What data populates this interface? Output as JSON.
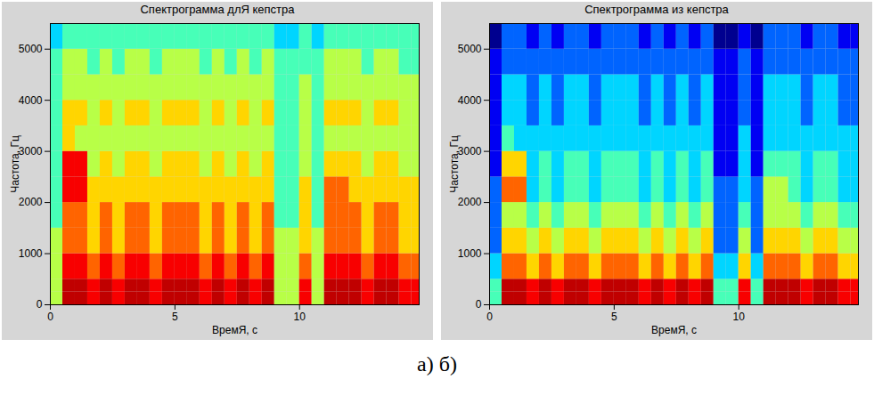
{
  "chart_data": [
    {
      "type": "heatmap",
      "title": "Спектрограмма длЯ кепстра",
      "x_label": "ВремЯ, с",
      "y_label": "Частота, Гц",
      "xlim": [
        0,
        14.8
      ],
      "xticks": [
        0,
        5,
        10
      ],
      "ylim": [
        0,
        5500
      ],
      "yticks": [
        0,
        1000,
        2000,
        3000,
        4000,
        5000
      ],
      "clim": [
        0,
        9
      ],
      "x": [
        0,
        0.5,
        1,
        1.5,
        2,
        2.5,
        3,
        3.5,
        4,
        4.5,
        5,
        5.5,
        6,
        6.5,
        7,
        7.5,
        8,
        8.5,
        9,
        9.5,
        10,
        10.5,
        11,
        11.5,
        12,
        12.5,
        13,
        13.5,
        14,
        14.5
      ],
      "y": [
        0,
        250,
        500,
        1000,
        1500,
        2000,
        2500,
        3000,
        3500,
        4000,
        4500,
        5000
      ],
      "cells": [
        [
          5,
          9,
          9,
          8,
          9,
          8,
          9,
          9,
          8,
          9,
          9,
          9,
          8,
          9,
          8,
          9,
          8,
          9,
          5,
          5,
          8,
          5,
          9,
          9,
          9,
          8,
          9,
          9,
          8,
          8
        ],
        [
          5,
          9,
          9,
          8,
          9,
          8,
          9,
          9,
          8,
          9,
          9,
          9,
          8,
          9,
          8,
          9,
          8,
          9,
          5,
          5,
          8,
          5,
          9,
          9,
          9,
          8,
          9,
          9,
          8,
          8
        ],
        [
          5,
          8,
          8,
          7,
          8,
          7,
          8,
          8,
          7,
          8,
          8,
          8,
          7,
          8,
          7,
          8,
          7,
          8,
          5,
          5,
          7,
          5,
          8,
          8,
          8,
          7,
          8,
          8,
          7,
          7
        ],
        [
          5,
          7,
          7,
          6,
          7,
          6,
          7,
          7,
          6,
          7,
          7,
          7,
          6,
          7,
          6,
          7,
          6,
          7,
          5,
          5,
          6,
          5,
          7,
          7,
          7,
          6,
          7,
          7,
          6,
          6
        ],
        [
          4,
          7,
          7,
          6,
          7,
          6,
          7,
          7,
          6,
          7,
          7,
          7,
          6,
          7,
          6,
          7,
          6,
          7,
          4,
          4,
          6,
          4,
          7,
          7,
          7,
          6,
          7,
          7,
          6,
          6
        ],
        [
          4,
          8,
          8,
          6,
          6,
          6,
          6,
          6,
          6,
          6,
          6,
          6,
          6,
          6,
          6,
          6,
          6,
          6,
          4,
          4,
          6,
          4,
          7,
          7,
          6,
          6,
          6,
          6,
          6,
          6
        ],
        [
          4,
          8,
          8,
          5,
          6,
          5,
          6,
          6,
          5,
          6,
          6,
          6,
          5,
          6,
          5,
          6,
          5,
          6,
          4,
          4,
          5,
          4,
          6,
          6,
          6,
          5,
          6,
          6,
          5,
          5
        ],
        [
          4,
          6,
          5,
          5,
          5,
          5,
          5,
          5,
          5,
          5,
          5,
          5,
          5,
          5,
          5,
          5,
          5,
          5,
          4,
          4,
          5,
          4,
          5,
          5,
          5,
          5,
          5,
          5,
          5,
          5
        ],
        [
          4,
          6,
          6,
          5,
          6,
          5,
          6,
          6,
          5,
          6,
          6,
          6,
          5,
          6,
          5,
          6,
          5,
          6,
          4,
          4,
          5,
          4,
          6,
          6,
          6,
          5,
          6,
          6,
          5,
          5
        ],
        [
          4,
          5,
          5,
          5,
          5,
          5,
          5,
          5,
          5,
          5,
          5,
          5,
          5,
          5,
          5,
          5,
          5,
          5,
          4,
          4,
          5,
          4,
          5,
          5,
          5,
          5,
          5,
          5,
          5,
          5
        ],
        [
          4,
          5,
          5,
          4,
          5,
          4,
          5,
          5,
          4,
          5,
          5,
          5,
          4,
          5,
          4,
          5,
          4,
          5,
          4,
          4,
          4,
          4,
          5,
          5,
          5,
          4,
          5,
          5,
          4,
          4
        ],
        [
          3,
          4,
          4,
          4,
          4,
          4,
          4,
          4,
          4,
          4,
          4,
          4,
          4,
          4,
          4,
          4,
          4,
          4,
          3,
          3,
          4,
          3,
          4,
          4,
          4,
          4,
          4,
          4,
          4,
          4
        ]
      ]
    },
    {
      "type": "heatmap",
      "title": "Спектрограмма из кепстра",
      "x_label": "ВремЯ, с",
      "y_label": "Частота, Гц",
      "xlim": [
        0,
        14.8
      ],
      "xticks": [
        0,
        5,
        10
      ],
      "ylim": [
        0,
        5500
      ],
      "yticks": [
        0,
        1000,
        2000,
        3000,
        4000,
        5000
      ],
      "clim": [
        0,
        9
      ],
      "x": [
        0,
        0.5,
        1,
        1.5,
        2,
        2.5,
        3,
        3.5,
        4,
        4.5,
        5,
        5.5,
        6,
        6.5,
        7,
        7.5,
        8,
        8.5,
        9,
        9.5,
        10,
        10.5,
        11,
        11.5,
        12,
        12.5,
        13,
        13.5,
        14,
        14.5
      ],
      "y": [
        0,
        250,
        500,
        1000,
        1500,
        2000,
        2500,
        3000,
        3500,
        4000,
        4500,
        5000
      ],
      "cells": [
        [
          4,
          9,
          9,
          8,
          9,
          8,
          9,
          9,
          8,
          9,
          9,
          9,
          8,
          9,
          8,
          9,
          8,
          9,
          4,
          4,
          8,
          4,
          9,
          9,
          9,
          8,
          9,
          9,
          8,
          8
        ],
        [
          4,
          9,
          9,
          8,
          9,
          8,
          9,
          9,
          8,
          9,
          9,
          9,
          8,
          9,
          8,
          9,
          8,
          9,
          4,
          4,
          8,
          4,
          9,
          9,
          9,
          8,
          9,
          9,
          8,
          8
        ],
        [
          3,
          7,
          7,
          6,
          7,
          6,
          7,
          7,
          6,
          7,
          7,
          7,
          6,
          7,
          6,
          7,
          6,
          7,
          3,
          3,
          6,
          3,
          7,
          7,
          7,
          6,
          7,
          7,
          6,
          6
        ],
        [
          2,
          6,
          6,
          5,
          6,
          5,
          6,
          6,
          5,
          6,
          6,
          6,
          5,
          6,
          5,
          6,
          5,
          6,
          2,
          2,
          5,
          2,
          6,
          6,
          6,
          5,
          6,
          6,
          5,
          5
        ],
        [
          2,
          5,
          5,
          4,
          5,
          4,
          5,
          5,
          4,
          5,
          5,
          5,
          4,
          5,
          4,
          5,
          4,
          5,
          2,
          2,
          4,
          2,
          5,
          5,
          5,
          4,
          5,
          5,
          4,
          4
        ],
        [
          2,
          7,
          7,
          3,
          4,
          3,
          4,
          4,
          3,
          4,
          4,
          4,
          3,
          4,
          3,
          4,
          3,
          4,
          2,
          2,
          3,
          2,
          5,
          5,
          4,
          3,
          4,
          4,
          3,
          3
        ],
        [
          1,
          6,
          6,
          3,
          4,
          3,
          4,
          4,
          3,
          4,
          4,
          4,
          3,
          4,
          3,
          4,
          3,
          4,
          1,
          1,
          3,
          1,
          4,
          4,
          4,
          3,
          4,
          4,
          3,
          3
        ],
        [
          1,
          4,
          3,
          3,
          3,
          3,
          3,
          3,
          3,
          3,
          3,
          3,
          3,
          3,
          3,
          3,
          3,
          3,
          1,
          1,
          3,
          1,
          3,
          3,
          3,
          3,
          3,
          3,
          3,
          3
        ],
        [
          1,
          3,
          3,
          2,
          3,
          2,
          3,
          3,
          2,
          3,
          3,
          3,
          2,
          3,
          2,
          3,
          2,
          3,
          1,
          1,
          2,
          1,
          3,
          3,
          3,
          2,
          3,
          3,
          2,
          2
        ],
        [
          1,
          3,
          3,
          2,
          3,
          2,
          3,
          3,
          2,
          3,
          3,
          3,
          2,
          3,
          2,
          3,
          2,
          3,
          1,
          1,
          2,
          1,
          3,
          3,
          3,
          2,
          3,
          3,
          2,
          2
        ],
        [
          1,
          2,
          2,
          2,
          2,
          2,
          2,
          2,
          2,
          2,
          2,
          2,
          2,
          2,
          2,
          2,
          2,
          2,
          1,
          1,
          2,
          1,
          2,
          2,
          2,
          2,
          2,
          2,
          2,
          2
        ],
        [
          0,
          2,
          2,
          1,
          2,
          1,
          2,
          2,
          1,
          2,
          2,
          2,
          1,
          2,
          1,
          2,
          1,
          2,
          0,
          0,
          1,
          0,
          2,
          2,
          2,
          1,
          2,
          2,
          1,
          1
        ]
      ]
    }
  ],
  "caption": "а) б)"
}
